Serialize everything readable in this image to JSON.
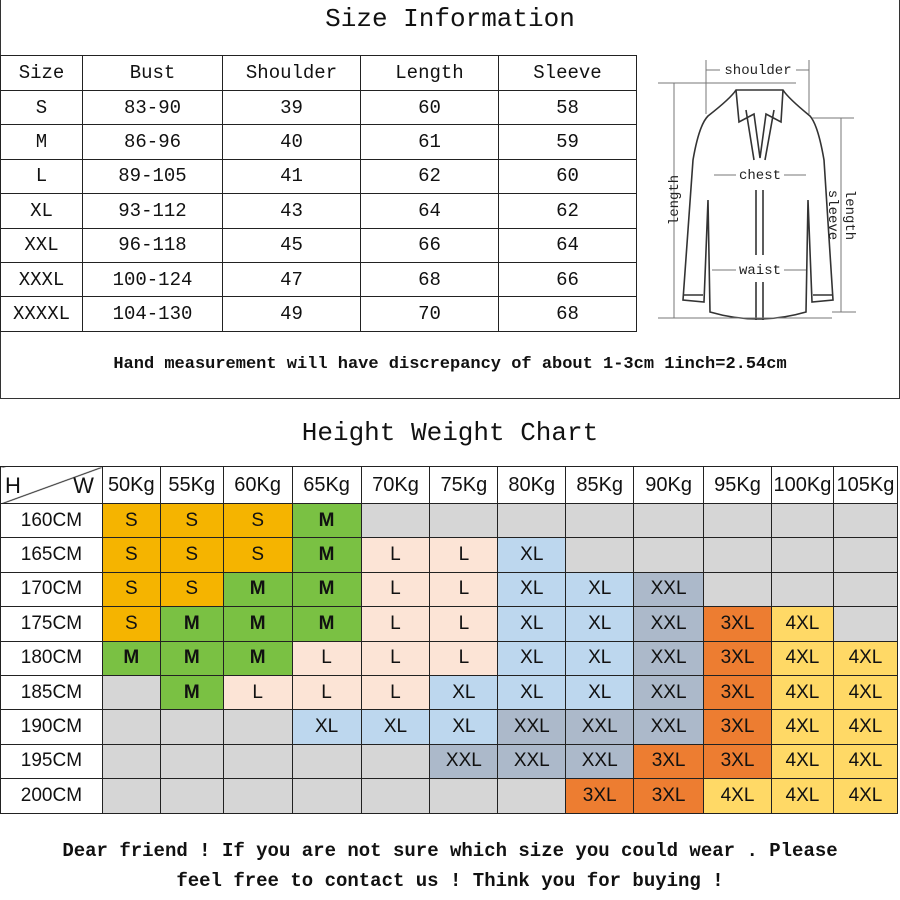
{
  "size_info": {
    "title": "Size Information",
    "headers": [
      "Size",
      "Bust",
      "Shoulder",
      "Length",
      "Sleeve"
    ],
    "rows": [
      [
        "S",
        "83-90",
        "39",
        "60",
        "58"
      ],
      [
        "M",
        "86-96",
        "40",
        "61",
        "59"
      ],
      [
        "L",
        "89-105",
        "41",
        "62",
        "60"
      ],
      [
        "XL",
        "93-112",
        "43",
        "64",
        "62"
      ],
      [
        "XXL",
        "96-118",
        "45",
        "66",
        "64"
      ],
      [
        "XXXL",
        "100-124",
        "47",
        "68",
        "66"
      ],
      [
        "XXXXL",
        "104-130",
        "49",
        "70",
        "68"
      ]
    ],
    "diagram_labels": {
      "shoulder": "shoulder",
      "chest": "chest",
      "waist": "waist",
      "length": "length",
      "sleeve": "sleeve",
      "sleeve_length": "length"
    },
    "note": "Hand measurement will have discrepancy of about 1-3cm  1inch=2.54cm"
  },
  "height_weight": {
    "title": "Height Weight Chart",
    "corner_h": "H",
    "corner_w": "W",
    "weights": [
      "50Kg",
      "55Kg",
      "60Kg",
      "65Kg",
      "70Kg",
      "75Kg",
      "80Kg",
      "85Kg",
      "90Kg",
      "95Kg",
      "100Kg",
      "105Kg"
    ],
    "heights": [
      "160CM",
      "165CM",
      "170CM",
      "175CM",
      "180CM",
      "185CM",
      "190CM",
      "195CM",
      "200CM"
    ],
    "grid": [
      [
        "S",
        "S",
        "S",
        "M",
        "",
        "",
        "",
        "",
        "",
        "",
        "",
        ""
      ],
      [
        "S",
        "S",
        "S",
        "M",
        "L",
        "L",
        "XL",
        "",
        "",
        "",
        "",
        ""
      ],
      [
        "S",
        "S",
        "M",
        "M",
        "L",
        "L",
        "XL",
        "XL",
        "XXL",
        "",
        "",
        ""
      ],
      [
        "S",
        "M",
        "M",
        "M",
        "L",
        "L",
        "XL",
        "XL",
        "XXL",
        "3XL",
        "4XL",
        ""
      ],
      [
        "M",
        "M",
        "M",
        "L",
        "L",
        "L",
        "XL",
        "XL",
        "XXL",
        "3XL",
        "4XL",
        "4XL"
      ],
      [
        "",
        "M",
        "L",
        "L",
        "L",
        "XL",
        "XL",
        "XL",
        "XXL",
        "3XL",
        "4XL",
        "4XL"
      ],
      [
        "",
        "",
        "",
        "XL",
        "XL",
        "XL",
        "XXL",
        "XXL",
        "XXL",
        "3XL",
        "4XL",
        "4XL"
      ],
      [
        "",
        "",
        "",
        "",
        "",
        "XXL",
        "XXL",
        "XXL",
        "3XL",
        "3XL",
        "4XL",
        "4XL"
      ],
      [
        "",
        "",
        "",
        "",
        "",
        "",
        "",
        "3XL",
        "3XL",
        "4XL",
        "4XL",
        "4XL"
      ]
    ],
    "colors": {
      "S": "#f5b400",
      "M": "#7ac143",
      "L": "#fce4d6",
      "XL": "#bdd7ee",
      "XXL": "#acb9ca",
      "3XL": "#ed7d31",
      "4XL": "#ffd966",
      "empty": "#d6d6d6"
    }
  },
  "footer": {
    "line1": "Dear friend ! If you are not sure which size you could wear . Please",
    "line2": "feel free to contact us ! Think you for buying !"
  }
}
